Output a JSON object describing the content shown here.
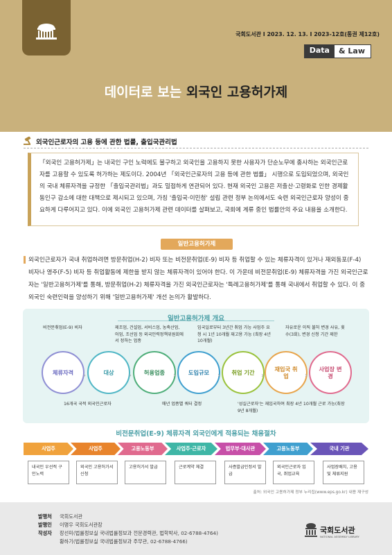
{
  "header": {
    "pubinfo": "국회도서관 I 2023. 12. 13. I 2023-12호(통권 제12호)",
    "badge_data": "Data",
    "badge_law": "& Law",
    "title_a": "데이터로 보는 ",
    "title_b": "외국인 고용허가제"
  },
  "section1": {
    "heading": "외국인근로자의 고용 등에 관한 법률, 출입국관리법"
  },
  "intro": "「외국인 고용허가제」는 내국인 구인 노력에도 불구하고 외국인을 고용하지 못한 사용자가 단순노무에 종사하는 외국인근로자를 고용할 수 있도록 허가하는 제도이다. 2004년 「외국인근로자의 고용 등에 관한 법률」 시행으로 도입되었으며, 외국인의 국내 체류자격을 규정한 「출입국관리법」과도 밀접하게 연관되어 있다. 현재 외국인 고용은 저출산·고령화로 인한 경제활동인구 감소에 대한 대책으로 제시되고 있으며, 가칭 '출입국·이민청' 설립 관련 정부 논의에서도 숙련 외국인근로자 양성이 중요하게 다루어지고 있다. 이에 외국인 고용허가제 관련 데이터를 살펴보고, 국회에 계류 중인 법률안의 주요 내용을 소개한다.",
  "section2": {
    "pill": "일반고용허가제",
    "body": "외국인근로자가 국내 취업하려면 방문취업(H-2) 비자 또는 비전문취업(E-9) 비자 등 취업할 수 있는 체류자격이 있거나 재외동포(F-4) 비자나 영주(F-5) 비자 등 취업활동에 제한을 받지 않는 체류자격이 있어야 한다. 이 가운데 비전문취업(E-9) 체류자격을 가진 외국인근로자는 '일반고용허가제'를 통해, 방문취업(H-2) 체류자격을 가진 외국인근로자는 '특례고용허가제'를 통해 국내에서 취업할 수 있다. 이 중 외국인 숙련인력을 양성하기 위해 '일반고용허가제' 개선 논의가 활발하다."
  },
  "overview": {
    "title": "일반고용허가제 개요",
    "top_notes": [
      "비전문취업(E-9) 비자",
      "제조업, 건설업, 서비스업, 농축산업, 어업, 조선업 등 외국인력정책위원회에서 정하는 업종",
      "입국일로부터 3년간 취업 가능 사업주 요청 시 1년 10개월 재고용 가능 (최장 4년 10개월)",
      "자유로운 이직 불허 변경 사유, 횟수(3회), 변경 신청 기간 제한"
    ],
    "bottom_notes": [
      "16개국 국적 외국인근로자",
      "매년 업종별 쿼터 결정",
      "'성실근로자'는 재입국하여 최장 4년 10개월 근로 가능(최장 9년 8개월)"
    ],
    "circles": [
      {
        "label": "체류자격",
        "color": "#8f8fd4"
      },
      {
        "label": "대상",
        "color": "#4fb6c5"
      },
      {
        "label": "허용업종",
        "color": "#4fae7a"
      },
      {
        "label": "도입규모",
        "color": "#3f9fcf"
      },
      {
        "label": "취업 기간",
        "color": "#9ac23c"
      },
      {
        "label": "재입국 취업",
        "color": "#e8a54c"
      },
      {
        "label": "사업장 변경",
        "color": "#e06a8e"
      }
    ]
  },
  "process": {
    "title": "비전문취업(E-9) 체류자격 외국인에게 적용되는 채용절차",
    "steps": [
      {
        "label": "사업주",
        "color": "#f0a23c",
        "desc": "내국인 우선적 구인노력"
      },
      {
        "label": "사업주",
        "color": "#e8842c",
        "desc": "외국인 고용허가서 신청"
      },
      {
        "label": "고용노동부",
        "color": "#e06a8e",
        "desc": "고용허가서 발급"
      },
      {
        "label": "사업주·근로자",
        "color": "#3fb6a6",
        "desc": "근로계약 체결"
      },
      {
        "label": "법무부·대사관",
        "color": "#c74fa8",
        "desc": "사증발급인정서 발급"
      },
      {
        "label": "고용노동부",
        "color": "#3f9fcf",
        "desc": "외국인근로자 입국, 취업교육"
      },
      {
        "label": "국내 기관",
        "color": "#6a55b8",
        "desc": "사업장배치, 고용 및 체류지원"
      }
    ],
    "source": "출처: 외국인 고용허가제 정부 누리집(www.eps.go.kr) 내용 재구성"
  },
  "footer": {
    "rows": [
      {
        "k": "발행처",
        "v": "국회도서관"
      },
      {
        "k": "발행인",
        "v": "이명우 국회도서관장"
      },
      {
        "k": "작성자",
        "v": "장선미(법률정보실 국내법률정보과 전문경력관, 법학박사, 02-6788-4764)"
      },
      {
        "k": "",
        "v": "황하기(법률정보실 국내법률정보과 주무관, 02-6788-4766)"
      }
    ],
    "org_name": "국회도서관",
    "org_en": "NATIONAL ASSEMBLY LIBRARY"
  }
}
